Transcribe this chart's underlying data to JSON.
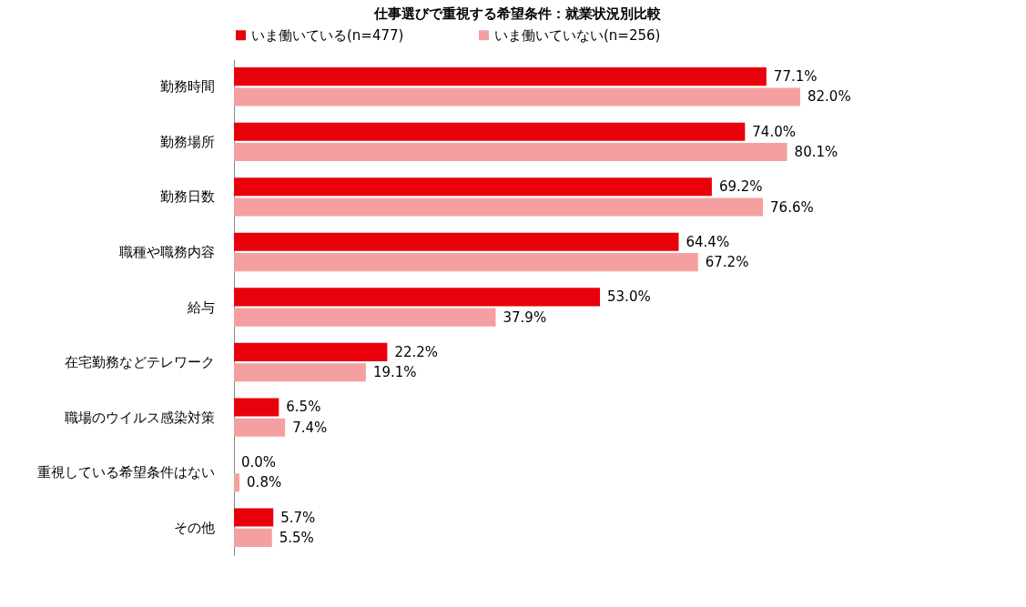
{
  "chart_data": {
    "type": "bar",
    "orientation": "horizontal",
    "title": "仕事選びで重視する希望条件：就業状況別比較",
    "legend": "top left",
    "categories": [
      "勤務時間",
      "勤務場所",
      "勤務日数",
      "職種や職務内容",
      "給与",
      "在宅勤務などテレワーク",
      "職場のウイルス感染対策",
      "重視している希望条件はない",
      "その他"
    ],
    "series": [
      {
        "name": "いま働いている(n=477)",
        "color": "#e8000b",
        "values": [
          77.1,
          74.0,
          69.2,
          64.4,
          53.0,
          22.2,
          6.5,
          0.0,
          5.7
        ],
        "value_labels": [
          "77.1%",
          "74.0%",
          "69.2%",
          "64.4%",
          "53.0%",
          "22.2%",
          "6.5%",
          "0.0%",
          "5.7%"
        ]
      },
      {
        "name": "いま働いていない(n=256)",
        "color": "#f4a0a0",
        "values": [
          82.0,
          80.1,
          76.6,
          67.2,
          37.9,
          19.1,
          7.4,
          0.8,
          5.5
        ],
        "value_labels": [
          "82.0%",
          "80.1%",
          "76.6%",
          "67.2%",
          "37.9%",
          "19.1%",
          "7.4%",
          "0.8%",
          "5.5%"
        ]
      }
    ]
  }
}
